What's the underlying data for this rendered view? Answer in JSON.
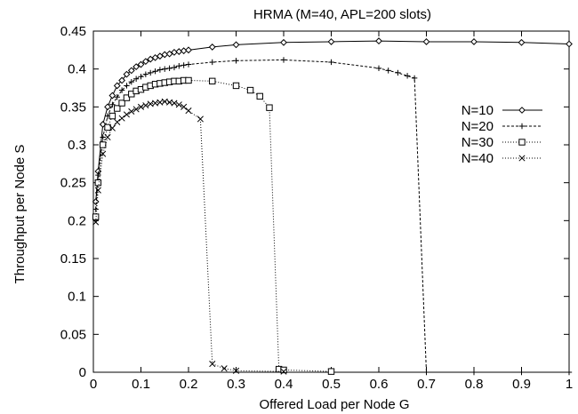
{
  "chart_data": {
    "type": "line",
    "title": "HRMA (M=40, APL=200 slots)",
    "xlabel": "Offered Load per Node G",
    "ylabel": "Throughput per Node S",
    "xlim": [
      0,
      1
    ],
    "ylim": [
      0,
      0.45
    ],
    "xticks": [
      0,
      0.1,
      0.2,
      0.3,
      0.4,
      0.5,
      0.6,
      0.7,
      0.8,
      0.9,
      1
    ],
    "xtick_labels": [
      "0",
      "0.1",
      "0.2",
      "0.3",
      "0.4",
      "0.5",
      "0.6",
      "0.7",
      "0.8",
      "0.9",
      "1"
    ],
    "yticks": [
      0,
      0.05,
      0.1,
      0.15,
      0.2,
      0.25,
      0.3,
      0.35,
      0.4,
      0.45
    ],
    "ytick_labels": [
      "0",
      "0.05",
      "0.1",
      "0.15",
      "0.2",
      "0.25",
      "0.3",
      "0.35",
      "0.4",
      "0.45"
    ],
    "grid": false,
    "legend_position": "right",
    "series": [
      {
        "name": "N=10",
        "marker": "diamond",
        "dash": "solid",
        "x": [
          0.005,
          0.01,
          0.02,
          0.03,
          0.04,
          0.05,
          0.06,
          0.07,
          0.08,
          0.09,
          0.1,
          0.11,
          0.12,
          0.13,
          0.14,
          0.15,
          0.16,
          0.17,
          0.18,
          0.19,
          0.2,
          0.25,
          0.3,
          0.4,
          0.5,
          0.6,
          0.7,
          0.8,
          0.9,
          1.0
        ],
        "y": [
          0.225,
          0.265,
          0.327,
          0.35,
          0.365,
          0.378,
          0.385,
          0.393,
          0.398,
          0.403,
          0.406,
          0.41,
          0.413,
          0.415,
          0.417,
          0.419,
          0.42,
          0.422,
          0.423,
          0.424,
          0.425,
          0.429,
          0.432,
          0.435,
          0.436,
          0.437,
          0.436,
          0.436,
          0.435,
          0.433
        ]
      },
      {
        "name": "N=20",
        "marker": "plus",
        "dash": "dashed",
        "x": [
          0.005,
          0.01,
          0.02,
          0.03,
          0.04,
          0.05,
          0.06,
          0.07,
          0.08,
          0.09,
          0.1,
          0.11,
          0.12,
          0.13,
          0.14,
          0.15,
          0.16,
          0.17,
          0.18,
          0.19,
          0.2,
          0.25,
          0.3,
          0.4,
          0.5,
          0.6,
          0.62,
          0.64,
          0.66,
          0.675,
          0.7,
          0.8,
          0.9,
          1.0
        ],
        "y": [
          0.215,
          0.26,
          0.31,
          0.338,
          0.353,
          0.363,
          0.372,
          0.378,
          0.383,
          0.387,
          0.39,
          0.393,
          0.395,
          0.397,
          0.399,
          0.4,
          0.401,
          0.402,
          0.404,
          0.405,
          0.406,
          0.409,
          0.411,
          0.412,
          0.409,
          0.401,
          0.398,
          0.395,
          0.391,
          0.388,
          0.0,
          0.0,
          0.0,
          0.0
        ]
      },
      {
        "name": "N=30",
        "marker": "square",
        "dash": "dotted",
        "x": [
          0.005,
          0.01,
          0.02,
          0.03,
          0.04,
          0.05,
          0.06,
          0.07,
          0.08,
          0.09,
          0.1,
          0.11,
          0.12,
          0.13,
          0.14,
          0.15,
          0.16,
          0.17,
          0.18,
          0.19,
          0.2,
          0.25,
          0.3,
          0.33,
          0.35,
          0.37,
          0.39,
          0.4,
          0.5
        ],
        "y": [
          0.205,
          0.25,
          0.3,
          0.323,
          0.338,
          0.348,
          0.355,
          0.362,
          0.367,
          0.371,
          0.373,
          0.376,
          0.378,
          0.38,
          0.381,
          0.382,
          0.383,
          0.384,
          0.384,
          0.385,
          0.385,
          0.384,
          0.378,
          0.372,
          0.364,
          0.349,
          0.004,
          0.003,
          0.001
        ]
      },
      {
        "name": "N=40",
        "marker": "cross",
        "dash": "dotted",
        "x": [
          0.005,
          0.01,
          0.02,
          0.03,
          0.04,
          0.05,
          0.06,
          0.07,
          0.08,
          0.09,
          0.1,
          0.11,
          0.12,
          0.13,
          0.14,
          0.15,
          0.16,
          0.17,
          0.18,
          0.19,
          0.2,
          0.225,
          0.25,
          0.275,
          0.3,
          0.4
        ],
        "y": [
          0.198,
          0.24,
          0.288,
          0.31,
          0.322,
          0.33,
          0.335,
          0.34,
          0.344,
          0.347,
          0.35,
          0.352,
          0.354,
          0.355,
          0.356,
          0.357,
          0.356,
          0.355,
          0.353,
          0.35,
          0.345,
          0.334,
          0.011,
          0.005,
          0.002,
          0.001
        ]
      }
    ]
  }
}
